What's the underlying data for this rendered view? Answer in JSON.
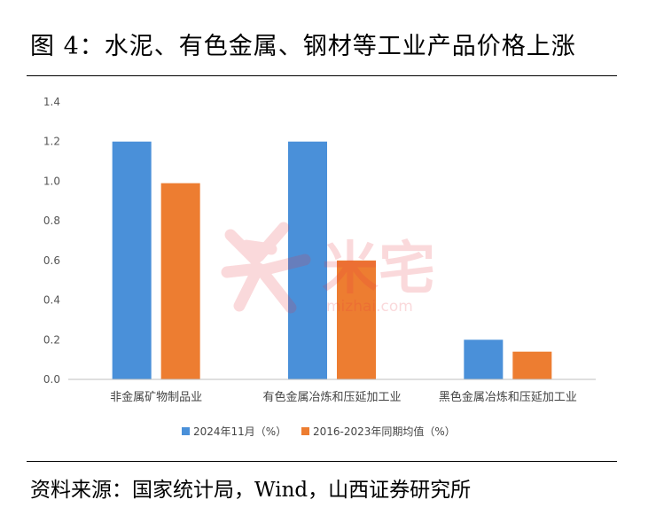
{
  "header": {
    "title": "图 4：水泥、有色金属、钢材等工业产品价格上涨"
  },
  "footer": {
    "source": "资料来源：国家统计局，Wind，山西证券研究所"
  },
  "watermark": {
    "text": "米宅",
    "url": "mizhai.com",
    "color": "#e8323c"
  },
  "chart_data": {
    "type": "bar",
    "categories": [
      "非金属矿物制品业",
      "有色金属冶炼和压延加工业",
      "黑色金属冶炼和压延加工业"
    ],
    "series": [
      {
        "name": "2024年11月（%）",
        "values": [
          1.2,
          1.2,
          0.2
        ],
        "color": "#4a90d9"
      },
      {
        "name": "2016-2023年同期均值（%）",
        "values": [
          0.99,
          0.6,
          0.14
        ],
        "color": "#ed7d31"
      }
    ],
    "ylim": [
      0,
      1.4
    ],
    "yticks": [
      "0.0",
      "0.2",
      "0.4",
      "0.6",
      "0.8",
      "1.0",
      "1.2",
      "1.4"
    ],
    "grid": false,
    "legend": "bottom"
  }
}
